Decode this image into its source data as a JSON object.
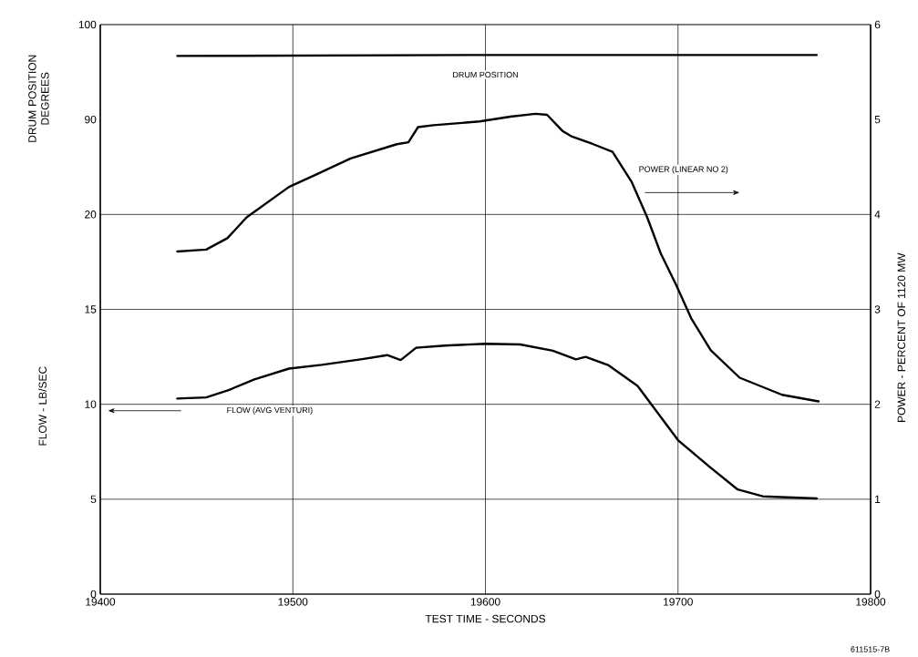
{
  "chart_data": {
    "type": "line",
    "xlabel": "TEST TIME - SECONDS",
    "ylabel": "FLOW - LB/SEC",
    "y2label": "POWER - PERCENT OF 1120 MW",
    "y3label": "DRUM POSITION DEGREES",
    "xlim": [
      19400,
      19800
    ],
    "xticks": [
      19400,
      19500,
      19600,
      19700,
      19800
    ],
    "ylim": [
      0,
      30
    ],
    "yticks": [
      0,
      5,
      10,
      15,
      20
    ],
    "y2lim": [
      0,
      6
    ],
    "y2ticks": [
      0,
      1,
      2,
      3,
      4,
      5,
      6
    ],
    "y3lim": [
      40,
      100
    ],
    "y3ticks": [
      90,
      100
    ],
    "grid": true,
    "annotations": [
      "611515-7B"
    ],
    "series": [
      {
        "name": "DRUM POSITION",
        "color": "#000000",
        "axis": "y3",
        "x": [
          19440,
          19600,
          19772
        ],
        "values": [
          96.7,
          96.8,
          96.8
        ]
      },
      {
        "name": "POWER (LINEAR NO  2)",
        "color": "#000000",
        "axis": "y2",
        "x": [
          19440,
          19455,
          19466,
          19476,
          19498,
          19512,
          19530,
          19554,
          19560,
          19565,
          19573,
          19597,
          19613,
          19626,
          19632,
          19640,
          19645,
          19656,
          19666,
          19676,
          19684,
          19691,
          19699,
          19707,
          19717,
          19732,
          19754,
          19773
        ],
        "values": [
          3.61,
          3.63,
          3.75,
          3.97,
          4.29,
          4.42,
          4.59,
          4.74,
          4.76,
          4.92,
          4.94,
          4.98,
          5.03,
          5.06,
          5.05,
          4.88,
          4.82,
          4.74,
          4.66,
          4.34,
          3.97,
          3.59,
          3.26,
          2.9,
          2.57,
          2.28,
          2.1,
          2.03
        ]
      },
      {
        "name": "FLOW (AVG  VENTURI)",
        "color": "#000000",
        "axis": "y",
        "x": [
          19440,
          19455,
          19467,
          19480,
          19498,
          19515,
          19536,
          19549,
          19556,
          19564,
          19579,
          19600,
          19618,
          19635,
          19647,
          19652,
          19664,
          19679,
          19700,
          19716,
          19731,
          19744,
          19772
        ],
        "values": [
          10.3,
          10.36,
          10.76,
          11.31,
          11.88,
          12.08,
          12.38,
          12.59,
          12.33,
          12.98,
          13.09,
          13.19,
          13.15,
          12.82,
          12.37,
          12.5,
          12.05,
          10.97,
          8.11,
          6.74,
          5.51,
          5.15,
          5.04
        ]
      }
    ]
  }
}
